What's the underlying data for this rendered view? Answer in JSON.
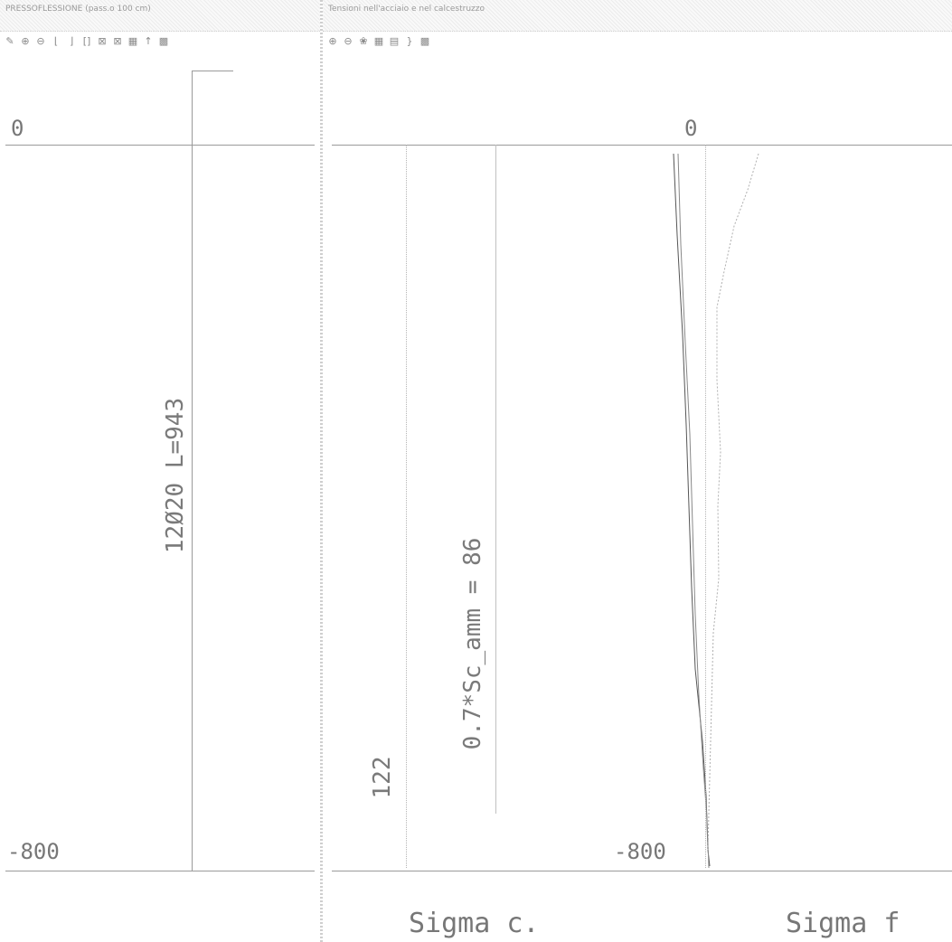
{
  "left_window": {
    "title": "PRESSOFLESSIONE (pass.o 100 cm)",
    "toolbar_icons": [
      "✎",
      "⊕",
      "⊖",
      "⌊",
      "⌋",
      "[]",
      "⊠",
      "⊠",
      "▦",
      "↑",
      "▩"
    ],
    "y_top_label": "0",
    "y_bottom_label": "-800",
    "rebar_label": "12Ø20 L=943"
  },
  "right_window": {
    "title": "Tensioni nell'acciaio e nel calcestruzzo",
    "toolbar_icons": [
      "⊕",
      "⊖",
      "❀",
      "▦",
      "▤",
      "}",
      "▩"
    ],
    "y_top_label": "0",
    "y_bottom_label": "-800",
    "limit_value_label": "122",
    "allowable_label": "0.7*Sc_amm = 86",
    "footer_left": "Sigma c.",
    "footer_right": "Sigma f"
  },
  "colors": {
    "axis": "#9a9a9a",
    "text": "#777777",
    "curve": "#555555",
    "curve_light": "#b0b0b0"
  },
  "chart_data": {
    "type": "line",
    "ylim": [
      -800,
      0
    ],
    "series": [
      {
        "values": [
          0,
          -50,
          -120,
          -200,
          -300,
          -400,
          -500,
          -600,
          -700,
          -760,
          -790
        ]
      },
      {
        "values": [
          0,
          -60,
          -150,
          -250,
          -350,
          -450,
          -550,
          -650,
          -740,
          -780,
          -800
        ]
      }
    ]
  }
}
